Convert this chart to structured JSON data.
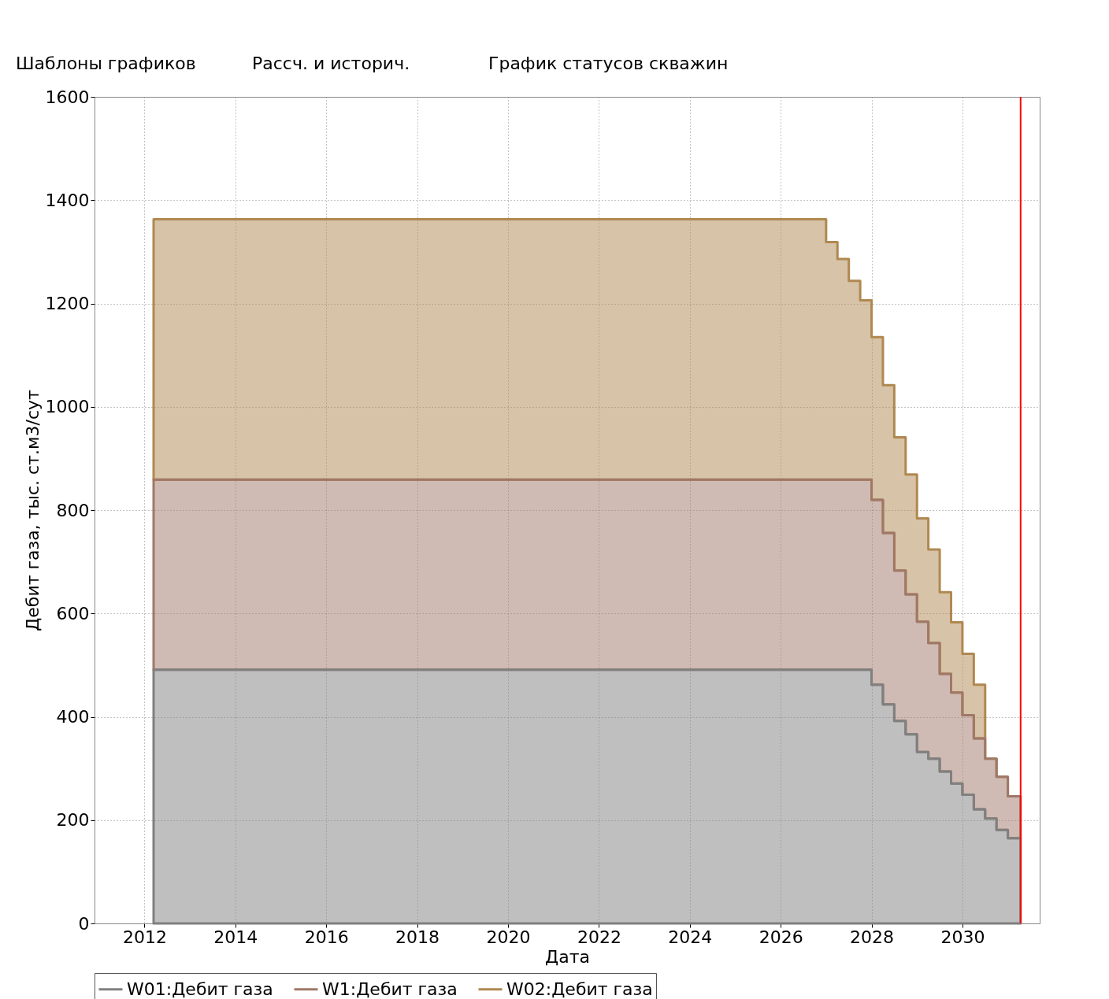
{
  "chart_data": {
    "type": "area",
    "stacked": true,
    "xlabel": "Дата",
    "ylabel": "Дебит газа, тыс. ст.м3/сут",
    "x": [
      2012.2,
      2027.0,
      2027.25,
      2027.5,
      2027.75,
      2028.0,
      2028.25,
      2028.5,
      2028.75,
      2029.0,
      2029.25,
      2029.5,
      2029.75,
      2030.0,
      2030.25,
      2030.5,
      2030.75,
      2031.0,
      2031.28
    ],
    "series": [
      {
        "name": "W01:Дебит газа",
        "color": "#808080",
        "values": [
          491,
          491,
          491,
          491,
          491,
          462,
          424,
          392,
          366,
          332,
          319,
          294,
          271,
          249,
          221,
          203,
          181,
          165,
          165
        ]
      },
      {
        "name": "W1:Дебит газа",
        "color": "#a07868",
        "values": [
          368,
          368,
          368,
          368,
          368,
          358,
          332,
          291,
          271,
          252,
          224,
          189,
          176,
          154,
          137,
          116,
          103,
          81,
          81
        ]
      },
      {
        "name": "W02:Дебит газа",
        "color": "#b08850",
        "values": [
          504,
          460,
          427,
          385,
          347,
          315,
          286,
          258,
          232,
          200,
          181,
          158,
          136,
          119,
          104,
          0,
          0,
          0,
          0
        ]
      }
    ],
    "line_style": "solid",
    "xlim": [
      2010.9,
      2031.7
    ],
    "xticks": [
      2012,
      2014,
      2016,
      2018,
      2020,
      2022,
      2024,
      2026,
      2028,
      2030
    ],
    "ylim": [
      0,
      1600
    ],
    "yticks": [
      0,
      200,
      400,
      600,
      800,
      1000,
      1200,
      1400,
      1600
    ],
    "grid": true,
    "legend": "bottom",
    "ref_lines": [
      {
        "axis": "x",
        "value": 2031.28,
        "color": "#ff0000"
      }
    ],
    "annotations": [
      "Шаблоны графиков",
      "Рассч. и историч.",
      "График статусов скважин"
    ]
  }
}
